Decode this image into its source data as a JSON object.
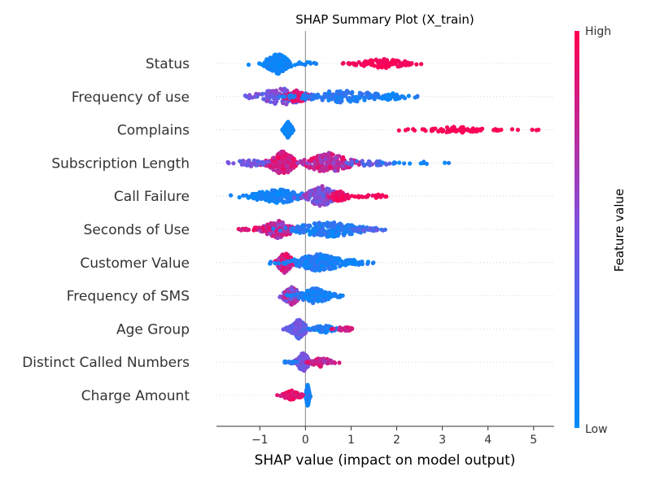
{
  "chart_data": {
    "type": "scatter",
    "subtype": "shap-beeswarm",
    "title": "SHAP Summary Plot (X_train)",
    "xlabel": "SHAP value (impact on model output)",
    "ylabel": "",
    "xlim": [
      -1.95,
      5.45
    ],
    "xticks": [
      -1,
      0,
      1,
      2,
      3,
      4,
      5
    ],
    "xtick_labels": [
      "−1",
      "0",
      "1",
      "2",
      "3",
      "4",
      "5"
    ],
    "colorbar": {
      "label": "Feature value",
      "high_label": "High",
      "low_label": "Low",
      "high_color": "#ff0051",
      "low_color": "#008bfb"
    },
    "grid": false,
    "features": [
      {
        "name": "Status",
        "clusters": [
          {
            "c": -0.6,
            "sd": 0.16,
            "n": 230,
            "w": 13,
            "cv": [
              0.0,
              0.1
            ]
          },
          {
            "c": 1.7,
            "sd": 0.35,
            "n": 110,
            "w": 6,
            "cv": [
              0.93,
              1.0
            ]
          },
          {
            "c": 0.0,
            "sd": 0.1,
            "n": 10,
            "w": 3,
            "cv": [
              0.0,
              0.1
            ]
          }
        ]
      },
      {
        "name": "Frequency of use",
        "clusters": [
          {
            "c": -0.5,
            "sd": 0.35,
            "n": 130,
            "w": 11,
            "cv": [
              0.3,
              0.6
            ]
          },
          {
            "c": -0.2,
            "sd": 0.15,
            "n": 60,
            "w": 8,
            "cv": [
              0.75,
              1.0
            ]
          },
          {
            "c": 0.8,
            "sd": 0.55,
            "n": 150,
            "w": 8,
            "cv": [
              0.05,
              0.25
            ]
          },
          {
            "c": 1.9,
            "sd": 0.2,
            "n": 30,
            "w": 5,
            "cv": [
              0.0,
              0.12
            ]
          }
        ]
      },
      {
        "name": "Complains",
        "clusters": [
          {
            "c": -0.38,
            "sd": 0.05,
            "n": 220,
            "w": 10,
            "cv": [
              0.0,
              0.1
            ]
          },
          {
            "c": 3.3,
            "sd": 0.4,
            "n": 70,
            "w": 4,
            "cv": [
              0.95,
              1.0
            ]
          },
          {
            "c": 4.4,
            "sd": 0.2,
            "n": 6,
            "w": 2,
            "cv": [
              0.95,
              1.0
            ]
          },
          {
            "c": 5.05,
            "sd": 0.04,
            "n": 3,
            "w": 1,
            "cv": [
              0.95,
              1.0
            ]
          }
        ]
      },
      {
        "name": "Subscription  Length",
        "clusters": [
          {
            "c": -0.5,
            "sd": 0.18,
            "n": 160,
            "w": 15,
            "cv": [
              0.7,
              1.0
            ]
          },
          {
            "c": -1.2,
            "sd": 0.28,
            "n": 40,
            "w": 4,
            "cv": [
              0.3,
              0.55
            ]
          },
          {
            "c": 0.5,
            "sd": 0.3,
            "n": 190,
            "w": 13,
            "cv": [
              0.55,
              0.95
            ]
          },
          {
            "c": 1.4,
            "sd": 0.3,
            "n": 30,
            "w": 4,
            "cv": [
              0.25,
              0.45
            ]
          },
          {
            "c": 2.5,
            "sd": 0.4,
            "n": 14,
            "w": 2,
            "cv": [
              0.0,
              0.15
            ]
          }
        ]
      },
      {
        "name": "Call  Failure",
        "clusters": [
          {
            "c": -0.6,
            "sd": 0.35,
            "n": 180,
            "w": 9,
            "cv": [
              0.0,
              0.15
            ]
          },
          {
            "c": 0.35,
            "sd": 0.2,
            "n": 170,
            "w": 13,
            "cv": [
              0.35,
              0.7
            ]
          },
          {
            "c": 0.75,
            "sd": 0.12,
            "n": 60,
            "w": 7,
            "cv": [
              0.85,
              1.0
            ]
          },
          {
            "c": 1.45,
            "sd": 0.18,
            "n": 22,
            "w": 3,
            "cv": [
              0.9,
              1.0
            ]
          }
        ]
      },
      {
        "name": "Seconds of Use",
        "clusters": [
          {
            "c": -0.6,
            "sd": 0.2,
            "n": 130,
            "w": 11,
            "cv": [
              0.55,
              0.9
            ]
          },
          {
            "c": -1.0,
            "sd": 0.25,
            "n": 25,
            "w": 3,
            "cv": [
              0.8,
              1.0
            ]
          },
          {
            "c": 0.5,
            "sd": 0.45,
            "n": 220,
            "w": 10,
            "cv": [
              0.0,
              0.25
            ]
          },
          {
            "c": 1.4,
            "sd": 0.2,
            "n": 25,
            "w": 3,
            "cv": [
              0.2,
              0.45
            ]
          }
        ]
      },
      {
        "name": "Customer Value",
        "clusters": [
          {
            "c": -0.45,
            "sd": 0.1,
            "n": 130,
            "w": 13,
            "cv": [
              0.65,
              1.0
            ]
          },
          {
            "c": 0.3,
            "sd": 0.35,
            "n": 260,
            "w": 11,
            "cv": [
              0.0,
              0.25
            ]
          },
          {
            "c": 1.0,
            "sd": 0.2,
            "n": 40,
            "w": 4,
            "cv": [
              0.0,
              0.15
            ]
          }
        ]
      },
      {
        "name": "Frequency of SMS",
        "clusters": [
          {
            "c": -0.3,
            "sd": 0.12,
            "n": 140,
            "w": 11,
            "cv": [
              0.4,
              0.85
            ]
          },
          {
            "c": 0.2,
            "sd": 0.2,
            "n": 150,
            "w": 10,
            "cv": [
              0.0,
              0.2
            ]
          },
          {
            "c": 0.6,
            "sd": 0.12,
            "n": 25,
            "w": 3,
            "cv": [
              0.0,
              0.15
            ]
          }
        ]
      },
      {
        "name": "Age Group",
        "clusters": [
          {
            "c": -0.15,
            "sd": 0.1,
            "n": 200,
            "w": 12,
            "cv": [
              0.3,
              0.55
            ]
          },
          {
            "c": 0.4,
            "sd": 0.15,
            "n": 50,
            "w": 5,
            "cv": [
              0.0,
              0.2
            ]
          },
          {
            "c": 0.85,
            "sd": 0.1,
            "n": 25,
            "w": 3,
            "cv": [
              0.75,
              1.0
            ]
          }
        ]
      },
      {
        "name": "Distinct Called Numbers",
        "clusters": [
          {
            "c": -0.05,
            "sd": 0.08,
            "n": 170,
            "w": 12,
            "cv": [
              0.35,
              0.6
            ]
          },
          {
            "c": 0.35,
            "sd": 0.15,
            "n": 60,
            "w": 6,
            "cv": [
              0.65,
              0.9
            ]
          },
          {
            "c": -0.35,
            "sd": 0.08,
            "n": 12,
            "w": 2,
            "cv": [
              0.0,
              0.2
            ]
          }
        ]
      },
      {
        "name": "Charge  Amount",
        "clusters": [
          {
            "c": 0.05,
            "sd": 0.02,
            "n": 170,
            "w": 14,
            "cv": [
              0.0,
              0.15
            ]
          },
          {
            "c": -0.3,
            "sd": 0.12,
            "n": 90,
            "w": 6,
            "cv": [
              0.8,
              1.0
            ]
          }
        ]
      }
    ]
  }
}
